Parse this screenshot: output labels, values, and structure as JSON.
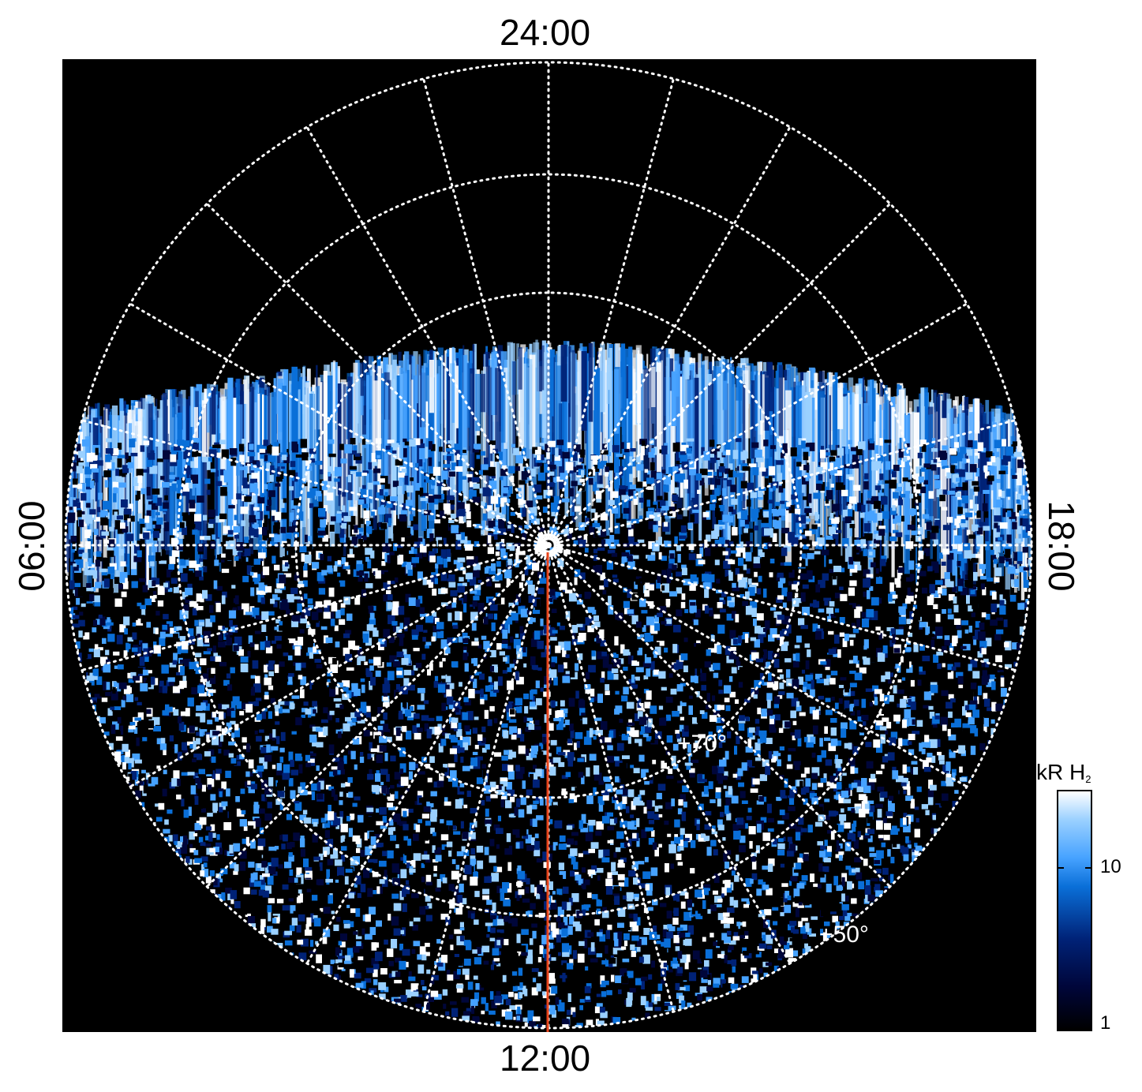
{
  "labels": {
    "top": "24:00",
    "bottom": "12:00",
    "left": "06:00",
    "right": "18:00"
  },
  "latitude_labels": {
    "lat70": "+70°",
    "lat50": "+50°"
  },
  "colorbar": {
    "title_main": "kR H",
    "title_sub": "2",
    "tick_10": "10",
    "tick_1": "1",
    "colors": [
      "#000000",
      "#00063a",
      "#002277",
      "#0a6fd8",
      "#46a2ff",
      "#9ad0ff",
      "#ffffff"
    ]
  },
  "marker_line_color": "#e8451c"
}
